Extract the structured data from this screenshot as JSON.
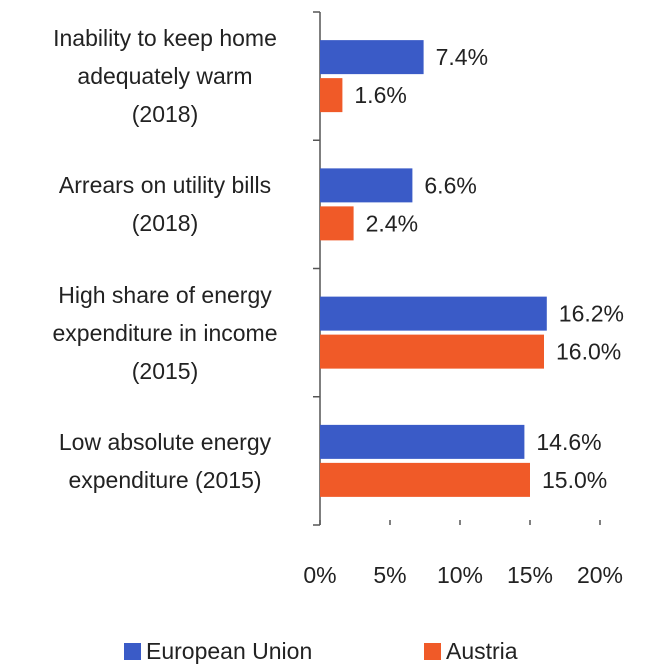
{
  "chart_data": {
    "type": "bar",
    "orientation": "horizontal",
    "categories": [
      "Inability to keep home\nadequately warm\n(2018)",
      "Arrears on utility bills\n(2018)",
      "High share of energy\nexpenditure in income\n(2015)",
      "Low absolute energy\nexpenditure (2015)"
    ],
    "series": [
      {
        "name": "European Union",
        "color": "#3a5bc7",
        "values": [
          7.4,
          6.6,
          16.2,
          14.6
        ],
        "value_labels": [
          "7.4%",
          "6.6%",
          "16.2%",
          "14.6%"
        ]
      },
      {
        "name": "Austria",
        "color": "#f05a28",
        "values": [
          1.6,
          2.4,
          16.0,
          15.0
        ],
        "value_labels": [
          "1.6%",
          "2.4%",
          "16.0%",
          "15.0%"
        ]
      }
    ],
    "xlim": [
      0,
      20
    ],
    "xticks": [
      {
        "value": 0,
        "label": "0%"
      },
      {
        "value": 5,
        "label": "5%"
      },
      {
        "value": 10,
        "label": "10%"
      },
      {
        "value": 15,
        "label": "15%"
      },
      {
        "value": 20,
        "label": "20%"
      }
    ],
    "legend": "bottom"
  }
}
